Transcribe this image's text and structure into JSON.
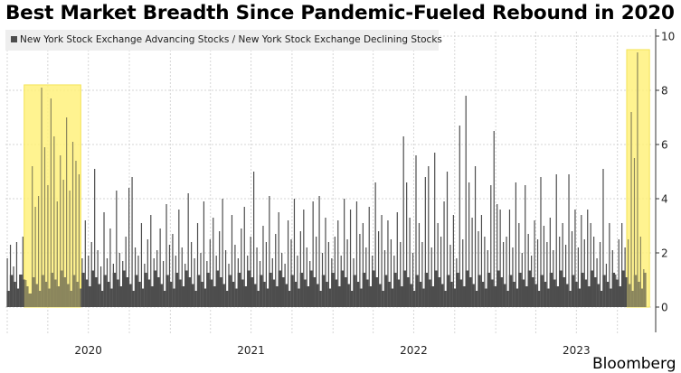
{
  "chart_data": {
    "type": "bar",
    "title": "Best Market Breadth Since Pandemic-Fueled Rebound in 2020",
    "legend": [
      {
        "name": "New York Stock Exchange Advancing Stocks / New York Stock Exchange Declining Stocks",
        "color": "#4d4d4d"
      }
    ],
    "legend_placement": "top-left",
    "xlabel": "",
    "ylabel": "",
    "x_start": "2020-01-03",
    "x_step_days": 7,
    "xlim": [
      "2019-12-20",
      "2023-12-31"
    ],
    "ylim": [
      0,
      10
    ],
    "y_axis_side": "right",
    "y_ticks": [
      "0",
      "2",
      "4",
      "6",
      "8",
      "10"
    ],
    "x_ticks": [
      "2020",
      "2021",
      "2022",
      "2023"
    ],
    "grid": true,
    "series": [
      {
        "name": "New York Stock Exchange Advancing Stocks / New York Stock Exchange Declining Stocks",
        "color": "#4d4d4d",
        "values": [
          1.8,
          2.3,
          1.5,
          2.4,
          1.2,
          2.6,
          1.0,
          0.5,
          5.2,
          3.7,
          4.1,
          8.1,
          5.9,
          4.5,
          7.7,
          6.3,
          3.9,
          5.6,
          4.7,
          7.0,
          4.3,
          6.1,
          5.4,
          4.9,
          1.8,
          3.2,
          1.9,
          2.4,
          5.1,
          2.1,
          1.5,
          3.5,
          1.8,
          2.9,
          1.6,
          4.3,
          2.0,
          1.7,
          2.6,
          4.4,
          4.8,
          2.2,
          1.9,
          3.1,
          1.6,
          2.5,
          3.4,
          1.8,
          2.1,
          2.9,
          1.7,
          3.8,
          2.3,
          2.7,
          1.9,
          3.6,
          2.2,
          1.6,
          4.2,
          2.4,
          1.8,
          3.1,
          2.0,
          3.9,
          1.7,
          2.5,
          3.3,
          1.9,
          2.8,
          4.0,
          2.1,
          1.6,
          3.4,
          2.3,
          1.8,
          2.9,
          3.7,
          1.9,
          2.6,
          5.0,
          2.2,
          1.7,
          3.0,
          2.4,
          4.1,
          1.8,
          2.7,
          3.5,
          2.0,
          1.6,
          3.2,
          2.5,
          4.0,
          1.9,
          2.8,
          3.6,
          2.2,
          1.7,
          3.9,
          2.6,
          4.1,
          2.0,
          3.3,
          2.4,
          1.8,
          2.6,
          3.2,
          1.9,
          4.0,
          2.5,
          3.6,
          1.8,
          3.9,
          2.7,
          3.1,
          2.2,
          3.7,
          1.9,
          4.6,
          2.8,
          3.4,
          2.1,
          3.2,
          2.5,
          1.9,
          3.5,
          2.4,
          6.3,
          4.6,
          3.3,
          2.0,
          5.6,
          3.1,
          2.4,
          4.8,
          5.2,
          2.2,
          5.7,
          3.1,
          2.6,
          3.9,
          5.0,
          2.3,
          3.4,
          1.8,
          6.7,
          2.5,
          7.8,
          4.6,
          3.3,
          5.2,
          2.8,
          3.4,
          2.6,
          2.1,
          4.5,
          6.5,
          3.8,
          3.6,
          2.4,
          2.6,
          3.6,
          2.2,
          4.6,
          3.1,
          2.0,
          4.5,
          2.7,
          1.9,
          3.2,
          2.5,
          4.8,
          3.0,
          2.4,
          3.3,
          2.1,
          4.9,
          2.6,
          3.1,
          2.3,
          4.9,
          2.8,
          3.6,
          2.2,
          3.4,
          2.5,
          3.6,
          3.1,
          2.6,
          1.8,
          2.4,
          5.1,
          1.6,
          3.1,
          2.1,
          1.2,
          2.5,
          3.1,
          2.2,
          2.5,
          7.2,
          5.5,
          9.4,
          2.6,
          1.4
        ]
      }
    ],
    "highlights": [
      {
        "x": [
          "2020-02-08",
          "2020-06-14"
        ],
        "y": [
          0,
          8.2
        ],
        "color": "#fff27a"
      },
      {
        "x": [
          "2023-10-22",
          "2023-12-12"
        ],
        "y": [
          0,
          9.5
        ],
        "color": "#fff27a"
      }
    ]
  },
  "watermark": "Bloomberg"
}
